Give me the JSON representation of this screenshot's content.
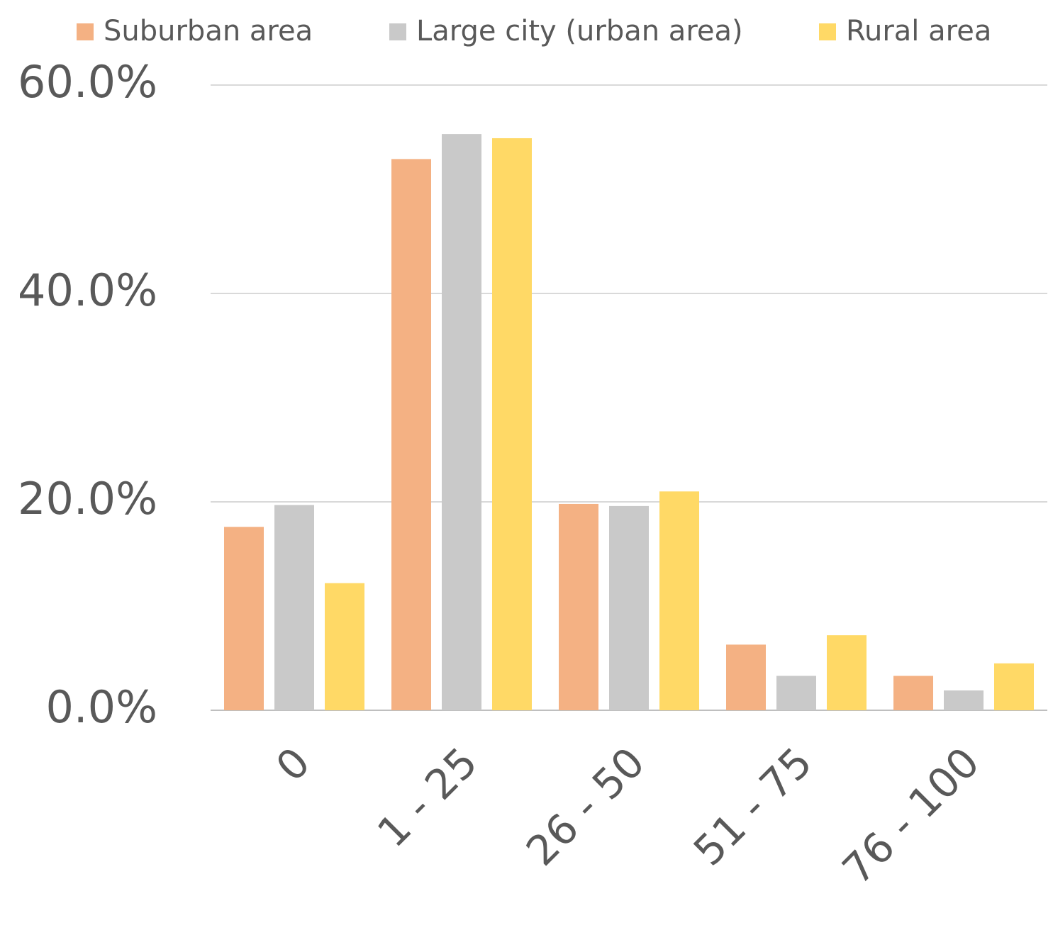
{
  "chart_data": {
    "type": "bar",
    "categories": [
      "0",
      "1 - 25",
      "26 - 50",
      "51 - 75",
      "76 - 100"
    ],
    "series": [
      {
        "name": "Suburban area",
        "color": "#f4b183",
        "values": [
          17.6,
          52.9,
          19.8,
          6.3,
          3.3
        ]
      },
      {
        "name": "Large city (urban area)",
        "color": "#c9c9c9",
        "values": [
          19.7,
          55.3,
          19.6,
          3.3,
          1.9
        ]
      },
      {
        "name": "Rural area",
        "color": "#ffd966",
        "values": [
          12.2,
          54.9,
          21.0,
          7.2,
          4.5
        ]
      }
    ],
    "ylim": [
      0,
      60
    ],
    "yticks": [
      {
        "value": 0,
        "label": "0.0%"
      },
      {
        "value": 20,
        "label": "20.0%"
      },
      {
        "value": 40,
        "label": "40.0%"
      },
      {
        "value": 60,
        "label": "60.0%"
      }
    ],
    "grid": true,
    "legend": "top"
  }
}
